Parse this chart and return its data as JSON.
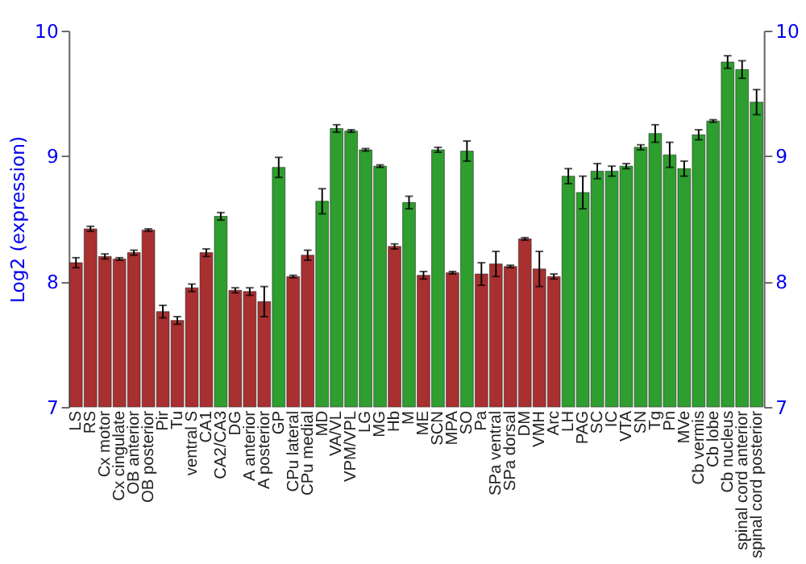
{
  "chart_data": {
    "type": "bar",
    "ylabel": "Log2 (expression)",
    "categories": [
      "LS",
      "RS",
      "Cx motor",
      "Cx cingulate",
      "OB anterior",
      "OB posterior",
      "Pir",
      "Tu",
      "ventral S",
      "CA1",
      "CA2/CA3",
      "DG",
      "A anterior",
      "A posterior",
      "GP",
      "CPu lateral",
      "CPu medial",
      "MD",
      "VA/VL",
      "VPM/VPL",
      "LG",
      "MG",
      "Hb",
      "M",
      "ME",
      "SCN",
      "MPA",
      "SO",
      "Pa",
      "SPa ventral",
      "SPa dorsal",
      "DM",
      "VMH",
      "Arc",
      "LH",
      "PAG",
      "SC",
      "IC",
      "VTA",
      "SN",
      "Tg",
      "Pn",
      "MVe",
      "Cb vermis",
      "Cb lobe",
      "Cb nucleus",
      "spinal cord anterior",
      "spinal cord posterior"
    ],
    "values": [
      8.15,
      8.42,
      8.2,
      8.18,
      8.23,
      8.41,
      7.76,
      7.69,
      7.95,
      8.23,
      8.52,
      7.93,
      7.92,
      7.84,
      8.91,
      8.04,
      8.21,
      8.64,
      9.22,
      9.2,
      9.05,
      8.92,
      8.28,
      8.63,
      8.05,
      9.05,
      8.07,
      9.04,
      8.06,
      8.14,
      8.12,
      8.34,
      8.1,
      8.04,
      8.84,
      8.71,
      8.88,
      8.88,
      8.92,
      9.07,
      9.18,
      9.01,
      8.9,
      9.17,
      9.28,
      9.75,
      9.69,
      9.43
    ],
    "errors": [
      0.04,
      0.02,
      0.02,
      0.01,
      0.02,
      0.01,
      0.05,
      0.03,
      0.03,
      0.03,
      0.03,
      0.02,
      0.03,
      0.12,
      0.08,
      0.01,
      0.04,
      0.1,
      0.03,
      0.01,
      0.01,
      0.01,
      0.02,
      0.05,
      0.03,
      0.02,
      0.01,
      0.08,
      0.09,
      0.1,
      0.01,
      0.01,
      0.14,
      0.02,
      0.06,
      0.13,
      0.06,
      0.04,
      0.02,
      0.02,
      0.07,
      0.1,
      0.06,
      0.04,
      0.01,
      0.05,
      0.07,
      0.1
    ],
    "colors": [
      "#a83030",
      "#a83030",
      "#a83030",
      "#a83030",
      "#a83030",
      "#a83030",
      "#a83030",
      "#a83030",
      "#a83030",
      "#a83030",
      "#2e9e2e",
      "#a83030",
      "#a83030",
      "#a83030",
      "#2e9e2e",
      "#a83030",
      "#a83030",
      "#2e9e2e",
      "#2e9e2e",
      "#2e9e2e",
      "#2e9e2e",
      "#2e9e2e",
      "#a83030",
      "#2e9e2e",
      "#a83030",
      "#2e9e2e",
      "#a83030",
      "#2e9e2e",
      "#a83030",
      "#a83030",
      "#a83030",
      "#a83030",
      "#a83030",
      "#a83030",
      "#2e9e2e",
      "#2e9e2e",
      "#2e9e2e",
      "#2e9e2e",
      "#2e9e2e",
      "#2e9e2e",
      "#2e9e2e",
      "#2e9e2e",
      "#2e9e2e",
      "#2e9e2e",
      "#2e9e2e",
      "#2e9e2e",
      "#2e9e2e",
      "#2e9e2e"
    ],
    "ylim": [
      7,
      10
    ],
    "yticks": [
      7,
      8,
      9,
      10
    ],
    "y2lim": [
      7,
      10
    ],
    "y2ticks": [
      7,
      8,
      9,
      10
    ],
    "grid": "y"
  }
}
